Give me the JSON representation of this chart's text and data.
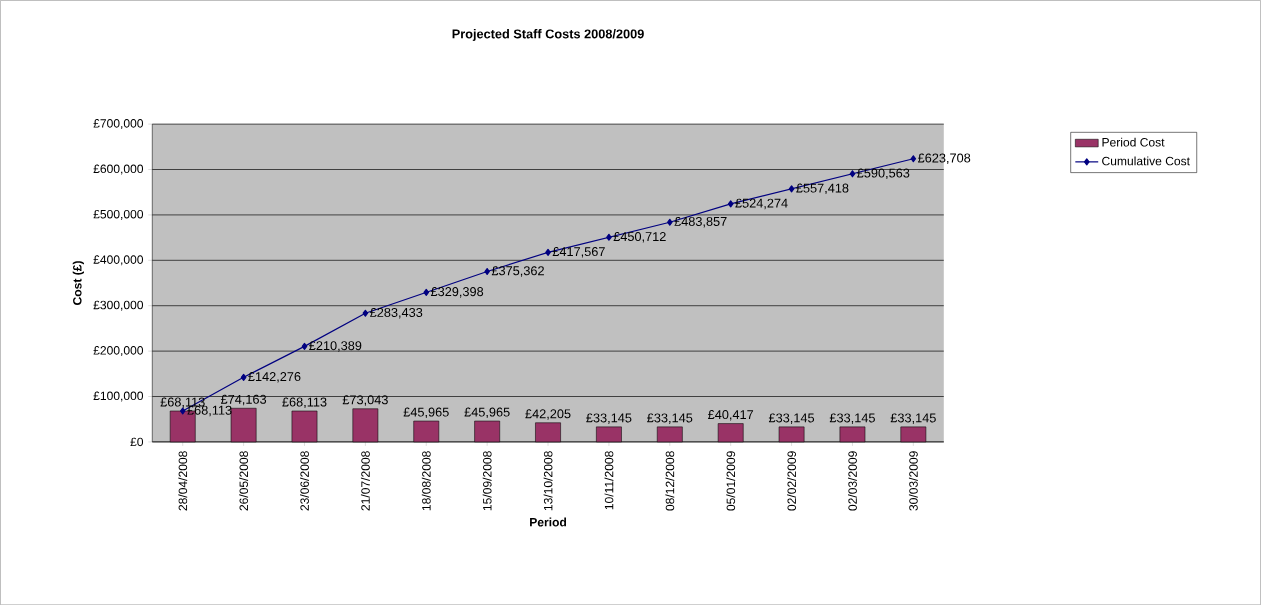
{
  "chart_data": {
    "type": "bar",
    "title": "Projected Staff Costs 2008/2009",
    "xlabel": "Period",
    "ylabel": "Cost (£)",
    "categories": [
      "28/04/2008",
      "26/05/2008",
      "23/06/2008",
      "21/07/2008",
      "18/08/2008",
      "15/09/2008",
      "13/10/2008",
      "10/11/2008",
      "08/12/2008",
      "05/01/2009",
      "02/02/2009",
      "02/03/2009",
      "30/03/2009"
    ],
    "series": [
      {
        "name": "Period Cost",
        "color": "#993366",
        "values": [
          68113,
          74163,
          68113,
          73043,
          45965,
          45965,
          42205,
          33145,
          33145,
          40417,
          33145,
          33145,
          33145
        ],
        "value_labels": [
          "£68,113",
          "£74,163",
          "£68,113",
          "£73,043",
          "£45,965",
          "£45,965",
          "£42,205",
          "£33,145",
          "£33,145",
          "£40,417",
          "£33,145",
          "£33,145",
          "£33,145"
        ]
      },
      {
        "name": "Cumulative Cost",
        "type": "line",
        "color": "#000080",
        "marker": "diamond",
        "line_style": "solid",
        "values": [
          68113,
          142276,
          210389,
          283433,
          329398,
          375362,
          417567,
          450712,
          483857,
          524274,
          557418,
          590563,
          623708
        ],
        "value_labels": [
          "£68,113",
          "£142,276",
          "£210,389",
          "£283,433",
          "£329,398",
          "£375,362",
          "£417,567",
          "£450,712",
          "£483,857",
          "£524,274",
          "£557,418",
          "£590,563",
          "£623,708"
        ]
      }
    ],
    "ylim": [
      0,
      700000
    ],
    "yticks": [
      {
        "value": 0,
        "label": "£0"
      },
      {
        "value": 100000,
        "label": "£100,000"
      },
      {
        "value": 200000,
        "label": "£200,000"
      },
      {
        "value": 300000,
        "label": "£300,000"
      },
      {
        "value": 400000,
        "label": "£400,000"
      },
      {
        "value": 500000,
        "label": "£500,000"
      },
      {
        "value": 600000,
        "label": "£600,000"
      },
      {
        "value": 700000,
        "label": "£700,000"
      }
    ],
    "grid": "y",
    "legend": "top right"
  }
}
